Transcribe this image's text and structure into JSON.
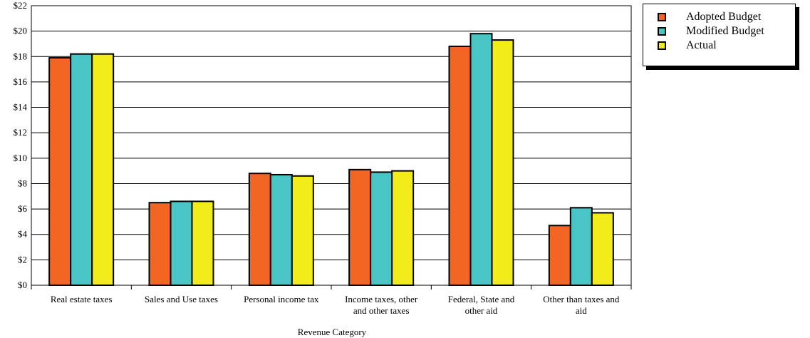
{
  "chart_data": {
    "type": "bar",
    "xlabel": "Revenue Category",
    "ylabel": "",
    "ylim": [
      0,
      22
    ],
    "ytick_step": 2,
    "ytick_prefix": "$",
    "grid": true,
    "legend_position": "top-right",
    "categories": [
      "Real estate taxes",
      "Sales and Use taxes",
      "Personal income tax",
      "Income taxes, other and other taxes",
      "Federal, State and other aid",
      "Other than taxes and aid"
    ],
    "category_lines": [
      [
        "Real estate taxes"
      ],
      [
        "Sales and Use taxes"
      ],
      [
        "Personal income tax"
      ],
      [
        "Income taxes, other",
        "and other taxes"
      ],
      [
        "Federal, State and",
        "other aid"
      ],
      [
        "Other than taxes and",
        "aid"
      ]
    ],
    "series": [
      {
        "name": "Adopted Budget",
        "color": "#f26522",
        "values": [
          17.9,
          6.5,
          8.8,
          9.1,
          18.8,
          4.7
        ]
      },
      {
        "name": "Modified Budget",
        "color": "#49c5c5",
        "values": [
          18.2,
          6.6,
          8.7,
          8.9,
          19.8,
          6.1
        ]
      },
      {
        "name": "Actual",
        "color": "#f2ec1a",
        "values": [
          18.2,
          6.6,
          8.6,
          9.0,
          19.3,
          5.7
        ]
      }
    ]
  }
}
